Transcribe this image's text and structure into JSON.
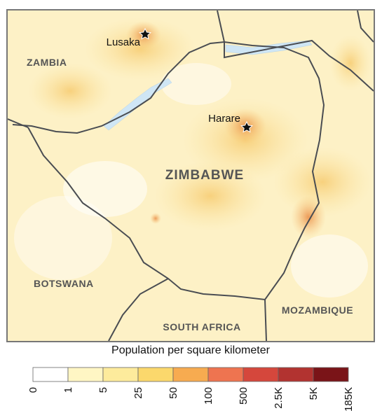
{
  "map": {
    "countries": [
      "ZAMBIA",
      "ZIMBABWE",
      "BOTSWANA",
      "SOUTH AFRICA",
      "MOZAMBIQUE"
    ],
    "cities": [
      "Lusaka",
      "Harare"
    ]
  },
  "legend": {
    "title": "Population per square kilometer",
    "ticks": [
      "0",
      "1",
      "5",
      "25",
      "50",
      "100",
      "500",
      "2.5K",
      "5K",
      "185K"
    ],
    "colors": [
      "#ffffff",
      "#fff6c4",
      "#fdeb9c",
      "#fbd86c",
      "#f7ab50",
      "#ee7450",
      "#d5473c",
      "#b23330",
      "#7a1418"
    ]
  }
}
